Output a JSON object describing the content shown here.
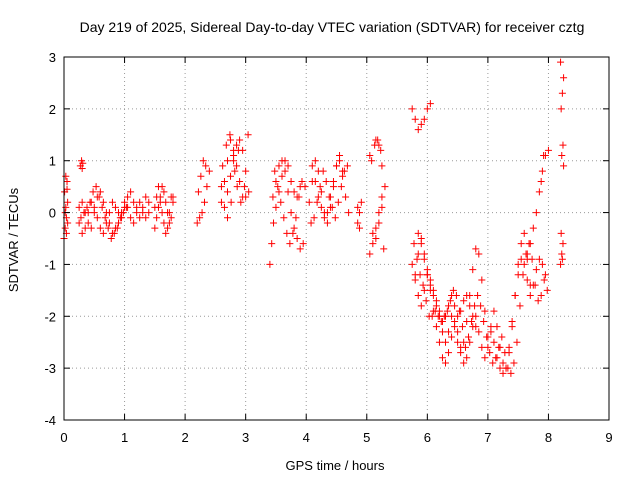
{
  "chart_data": {
    "type": "scatter",
    "title": "Day 219 of 2025, Sidereal Day-to-day VTEC variation (SDTVAR) for receiver cztg",
    "xlabel": "GPS time / hours",
    "ylabel": "SDTVAR / TECUs",
    "xlim": [
      0,
      9
    ],
    "ylim": [
      -4,
      3
    ],
    "xticks": [
      "0",
      "1",
      "2",
      "3",
      "4",
      "5",
      "6",
      "7",
      "8",
      "9"
    ],
    "yticks": [
      "-4",
      "-3",
      "-2",
      "-1",
      "0",
      "1",
      "2",
      "3"
    ],
    "grid": true,
    "marker": "plus",
    "color": "#ff0000",
    "series": [
      {
        "name": "SDTVAR",
        "segments": [
          {
            "x": [
              0.0,
              0.02,
              0.04,
              0.06,
              0.03,
              0.05,
              0.01,
              0.03,
              0.06,
              0.04,
              0.02,
              0.05
            ],
            "y": [
              -0.5,
              -0.3,
              -0.1,
              0.2,
              0.7,
              0.6,
              0.4,
              0.1,
              -0.2,
              -0.4,
              0.0,
              0.45
            ]
          },
          {
            "x": [
              0.27,
              0.29,
              0.31,
              0.3
            ],
            "y": [
              0.9,
              1.0,
              0.95,
              0.85
            ]
          },
          {
            "x": [
              0.25,
              0.3,
              0.35,
              0.4,
              0.45,
              0.5,
              0.55,
              0.6,
              0.65,
              0.7,
              0.75,
              0.8,
              0.85,
              0.9,
              0.95,
              1.0,
              1.05,
              1.1,
              1.15,
              1.2,
              1.25,
              1.3,
              1.35,
              1.4
            ],
            "y": [
              -0.2,
              -0.4,
              -0.3,
              0.0,
              0.2,
              0.1,
              -0.1,
              -0.3,
              -0.4,
              -0.2,
              0.0,
              0.2,
              0.1,
              0.0,
              -0.1,
              0.1,
              0.3,
              0.4,
              0.2,
              0.0,
              -0.1,
              0.1,
              0.3,
              0.2
            ]
          },
          {
            "x": [
              0.25,
              0.3,
              0.35,
              0.4,
              0.45,
              0.5,
              0.55,
              0.6,
              0.65,
              0.7,
              0.75,
              0.8,
              0.85,
              0.9,
              0.95,
              1.0,
              1.05,
              1.1,
              1.15,
              1.2,
              1.25,
              1.3,
              1.35,
              1.4
            ],
            "y": [
              0.1,
              0.2,
              0.0,
              -0.2,
              -0.3,
              0.0,
              0.3,
              0.4,
              0.2,
              0.0,
              -0.2,
              -0.4,
              -0.3,
              -0.2,
              0.0,
              0.2,
              0.1,
              -0.1,
              -0.2,
              0.1,
              0.2,
              0.0,
              -0.1,
              0.0
            ]
          },
          {
            "x": [
              0.28,
              0.33,
              0.38,
              0.43,
              0.48,
              0.53,
              0.58,
              0.63,
              0.68,
              0.73,
              0.78,
              0.83,
              0.88,
              0.93,
              0.98,
              1.03
            ],
            "y": [
              -0.1,
              0.0,
              0.1,
              0.2,
              0.4,
              0.5,
              0.3,
              0.1,
              -0.1,
              -0.3,
              -0.5,
              -0.4,
              -0.3,
              -0.1,
              0.0,
              0.1
            ]
          },
          {
            "x": [
              1.5,
              1.53,
              1.56,
              1.59,
              1.62,
              1.65,
              1.68,
              1.71,
              1.74,
              1.77,
              1.8
            ],
            "y": [
              -0.3,
              -0.1,
              0.1,
              0.3,
              0.5,
              0.4,
              0.2,
              0.0,
              -0.2,
              -0.1,
              0.3
            ]
          },
          {
            "x": [
              1.5,
              1.53,
              1.56,
              1.59,
              1.62,
              1.65,
              1.68,
              1.71,
              1.74,
              1.77,
              1.8
            ],
            "y": [
              0.1,
              0.3,
              0.5,
              0.2,
              0.0,
              -0.2,
              -0.4,
              -0.3,
              0.0,
              0.3,
              0.2
            ]
          },
          {
            "x": [
              2.2,
              2.24,
              2.28,
              2.32,
              2.36,
              2.4,
              2.3,
              2.26,
              2.22,
              2.34
            ],
            "y": [
              -0.2,
              -0.1,
              0.0,
              0.2,
              0.5,
              0.8,
              1.0,
              0.7,
              0.4,
              0.9
            ]
          },
          {
            "x": [
              2.6,
              2.65,
              2.7,
              2.75,
              2.8,
              2.85,
              2.9,
              2.95,
              3.0,
              3.05,
              3.0,
              2.95,
              2.9,
              2.85,
              2.8,
              2.75,
              2.7,
              2.65,
              2.6
            ],
            "y": [
              0.2,
              0.6,
              1.0,
              1.4,
              1.2,
              0.9,
              0.6,
              0.3,
              0.3,
              0.4,
              0.8,
              1.2,
              1.4,
              1.3,
              1.0,
              0.7,
              0.4,
              0.1,
              0.5
            ]
          },
          {
            "x": [
              2.62,
              2.68,
              2.74,
              2.8,
              2.86,
              2.92,
              2.98,
              3.04,
              2.7,
              2.76,
              2.82,
              2.88
            ],
            "y": [
              0.9,
              1.3,
              1.5,
              1.1,
              0.5,
              0.2,
              0.5,
              1.5,
              -0.1,
              0.2,
              0.8,
              1.2
            ]
          },
          {
            "x": [
              3.4,
              3.43,
              3.46,
              3.5,
              3.55,
              3.6,
              3.65,
              3.7,
              3.75,
              3.8,
              3.85,
              3.9
            ],
            "y": [
              -1.0,
              -0.6,
              -0.2,
              0.1,
              0.4,
              0.7,
              1.0,
              0.9,
              0.6,
              0.4,
              0.3,
              0.5
            ]
          },
          {
            "x": [
              3.45,
              3.5,
              3.55,
              3.6,
              3.65,
              3.7,
              3.75,
              3.8,
              3.85,
              3.9,
              3.95
            ],
            "y": [
              0.3,
              0.6,
              0.9,
              1.0,
              0.8,
              0.4,
              0.0,
              -0.3,
              -0.5,
              -0.7,
              -0.6
            ]
          },
          {
            "x": [
              3.48,
              3.53,
              3.58,
              3.63,
              3.68,
              3.73,
              3.78,
              3.83,
              3.88,
              3.93,
              3.98
            ],
            "y": [
              0.8,
              0.5,
              0.2,
              -0.1,
              -0.4,
              -0.6,
              -0.4,
              -0.1,
              0.3,
              0.6,
              0.5
            ]
          },
          {
            "x": [
              4.05,
              4.1,
              4.15,
              4.2,
              4.25,
              4.3,
              4.35,
              4.4,
              4.45,
              4.5,
              4.55,
              4.6,
              4.65,
              4.7
            ],
            "y": [
              0.2,
              0.6,
              1.0,
              0.8,
              0.4,
              0.0,
              -0.2,
              0.1,
              0.5,
              0.9,
              1.1,
              0.7,
              0.3,
              0.0
            ]
          },
          {
            "x": [
              4.08,
              4.13,
              4.18,
              4.23,
              4.28,
              4.33,
              4.38,
              4.43,
              4.48,
              4.53,
              4.58,
              4.63,
              4.68
            ],
            "y": [
              -0.2,
              -0.1,
              0.2,
              0.5,
              0.8,
              0.6,
              0.3,
              0.1,
              -0.1,
              0.2,
              0.5,
              0.8,
              0.9
            ]
          },
          {
            "x": [
              4.1,
              4.15,
              4.2,
              4.25,
              4.3,
              4.35,
              4.4,
              4.45,
              4.5,
              4.55,
              4.6
            ],
            "y": [
              0.9,
              0.6,
              0.3,
              0.1,
              -0.1,
              0.0,
              0.3,
              0.6,
              0.9,
              1.0,
              0.8
            ]
          },
          {
            "x": [
              4.85,
              4.88,
              4.91,
              4.88,
              4.85
            ],
            "y": [
              -0.2,
              0.0,
              0.2,
              -0.3,
              0.1
            ]
          },
          {
            "x": [
              5.05,
              5.1,
              5.15,
              5.2,
              5.25,
              5.3,
              5.25,
              5.2,
              5.15,
              5.1,
              5.05,
              5.15,
              5.2,
              5.25
            ],
            "y": [
              -0.8,
              -0.6,
              -0.3,
              0.0,
              0.3,
              0.5,
              0.1,
              -0.2,
              -0.5,
              -0.4,
              1.1,
              1.4,
              1.3,
              0.9
            ]
          },
          {
            "x": [
              5.08,
              5.13,
              5.18,
              5.23,
              5.28
            ],
            "y": [
              1.0,
              1.3,
              1.4,
              1.2,
              -0.7
            ]
          },
          {
            "x": [
              5.75,
              5.8,
              5.85,
              5.9,
              5.95,
              6.0,
              6.05
            ],
            "y": [
              2.0,
              1.8,
              1.6,
              1.7,
              1.8,
              2.0,
              2.1
            ]
          },
          {
            "x": [
              5.75,
              5.8,
              5.85,
              5.9,
              5.95,
              6.0,
              6.05,
              6.1,
              6.15,
              6.2,
              6.25,
              6.3,
              6.35,
              6.4,
              6.45,
              6.5,
              6.55,
              6.6,
              6.65,
              6.7,
              6.75,
              6.8,
              6.85,
              6.9,
              6.95,
              7.0,
              7.05,
              7.1,
              7.15,
              7.2,
              7.25,
              7.3,
              7.35,
              7.4,
              7.45,
              7.5,
              7.55,
              7.6,
              7.65,
              7.7,
              7.75,
              7.8,
              7.85,
              7.9,
              7.95
            ],
            "y": [
              -1.0,
              -1.3,
              -1.6,
              -1.8,
              -1.5,
              -1.2,
              -1.5,
              -1.9,
              -2.2,
              -2.5,
              -2.8,
              -2.9,
              -2.7,
              -2.4,
              -2.1,
              -2.3,
              -2.6,
              -2.9,
              -2.8,
              -2.5,
              -2.2,
              -2.0,
              -2.3,
              -2.6,
              -2.8,
              -2.6,
              -2.3,
              -2.5,
              -2.8,
              -3.0,
              -3.1,
              -3.0,
              -2.6,
              -2.1,
              -1.6,
              -1.2,
              -0.9,
              -1.0,
              -1.3,
              -1.6,
              -1.4,
              -1.1,
              -0.9,
              -1.0,
              -1.2
            ]
          },
          {
            "x": [
              5.78,
              5.83,
              5.88,
              5.93,
              5.98,
              6.03,
              6.08,
              6.13,
              6.18,
              6.23,
              6.28,
              6.33,
              6.38,
              6.43,
              6.48,
              6.53,
              6.58,
              6.63,
              6.68,
              6.73,
              6.78,
              6.83,
              6.88,
              6.93,
              6.98,
              7.03,
              7.08,
              7.13,
              7.18,
              7.23,
              7.28,
              7.33,
              7.38,
              7.43,
              7.48,
              7.53,
              7.58,
              7.63,
              7.68,
              7.73,
              7.78,
              7.83,
              7.88,
              7.93,
              7.98
            ],
            "y": [
              -0.6,
              -0.9,
              -1.2,
              -1.4,
              -1.7,
              -2.0,
              -2.0,
              -1.9,
              -2.0,
              -2.1,
              -2.0,
              -1.9,
              -1.7,
              -1.5,
              -1.6,
              -1.9,
              -2.2,
              -2.6,
              -2.4,
              -2.1,
              -1.8,
              -1.6,
              -1.8,
              -2.1,
              -2.4,
              -2.7,
              -2.9,
              -2.8,
              -2.6,
              -2.4,
              -2.7,
              -3.0,
              -3.1,
              -2.9,
              -2.5,
              -1.8,
              -1.2,
              -0.8,
              -0.6,
              -0.9,
              -1.4,
              -1.7,
              -1.6,
              -1.3,
              -1.5
            ]
          },
          {
            "x": [
              5.8,
              5.85,
              5.9,
              5.95,
              6.0,
              6.05,
              6.1,
              6.15,
              6.2,
              6.25,
              6.3,
              6.35,
              6.4,
              6.45,
              6.5,
              6.55,
              6.6,
              6.65,
              6.7,
              6.75,
              6.8,
              6.85,
              6.9,
              6.95,
              7.0,
              7.05,
              7.1,
              7.15,
              7.2,
              7.25,
              7.3,
              7.35,
              7.4,
              7.45,
              7.5,
              7.55,
              7.6,
              7.65,
              7.7
            ],
            "y": [
              -1.2,
              -0.8,
              -0.5,
              -0.8,
              -1.1,
              -1.4,
              -1.6,
              -1.8,
              -2.0,
              -2.3,
              -2.5,
              -2.3,
              -2.0,
              -2.2,
              -2.5,
              -2.7,
              -2.5,
              -2.1,
              -1.6,
              -1.1,
              -0.7,
              -0.8,
              -1.3,
              -1.9,
              -2.4,
              -2.2,
              -1.9,
              -2.2,
              -2.6,
              -2.9,
              -3.0,
              -2.7,
              -2.2,
              -1.6,
              -1.0,
              -0.6,
              -0.4,
              -0.8,
              -1.4
            ]
          },
          {
            "x": [
              5.85,
              5.9,
              5.95,
              6.0,
              6.05,
              6.1,
              6.15,
              6.2,
              6.25,
              6.3,
              6.35,
              6.4,
              6.45,
              6.5,
              6.55,
              6.6,
              6.65,
              6.7,
              6.75,
              6.8
            ],
            "y": [
              -0.4,
              -0.6,
              -0.9,
              -1.2,
              -1.3,
              -1.5,
              -1.7,
              -1.9,
              -2.1,
              -2.0,
              -1.8,
              -1.6,
              -1.8,
              -2.0,
              -1.9,
              -1.7,
              -1.6,
              -1.8,
              -2.0,
              -2.2
            ]
          },
          {
            "x": [
              7.65,
              7.7,
              7.75,
              7.8,
              7.85,
              7.9,
              7.95,
              8.0,
              7.92,
              7.88
            ],
            "y": [
              -0.9,
              -0.6,
              -0.3,
              0.0,
              0.4,
              0.8,
              1.1,
              1.2,
              1.1,
              0.6
            ]
          },
          {
            "x": [
              8.2,
              8.22,
              8.24,
              8.21,
              8.23,
              8.25,
              8.22,
              8.24,
              8.21,
              8.23,
              8.25,
              8.2
            ],
            "y": [
              -1.0,
              -0.8,
              -0.6,
              -0.4,
              -0.9,
              0.9,
              1.1,
              1.3,
              2.0,
              2.3,
              2.6,
              2.9
            ]
          }
        ]
      }
    ]
  }
}
